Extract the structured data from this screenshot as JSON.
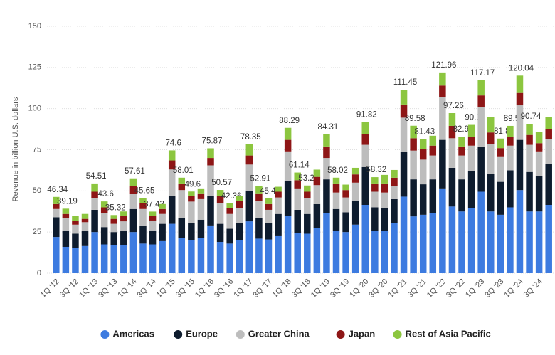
{
  "chart_data": {
    "type": "stacked-bar",
    "ylabel": "Revenue in billion U.S. dollars",
    "categories": [
      "1Q '12",
      null,
      "3Q '12",
      null,
      "1Q '13",
      null,
      "3Q '13",
      null,
      "1Q '14",
      null,
      "3Q '14",
      null,
      "1Q '15",
      null,
      "3Q '15",
      null,
      "1Q '16",
      null,
      "3Q '16",
      null,
      "1Q '17",
      null,
      "3Q '17",
      null,
      "1Q '18",
      null,
      "3Q '18",
      null,
      "1Q '19",
      null,
      "3Q '19",
      null,
      "1Q '20",
      null,
      "3Q '20",
      null,
      "1Q '21",
      null,
      "3Q '21",
      null,
      "1Q '22",
      null,
      "3Q '22",
      null,
      "1Q '23",
      null,
      "3Q '23",
      null,
      "1Q '24",
      null,
      "3Q '24",
      null
    ],
    "series": [
      {
        "name": "Americas",
        "color": "#3d7be0",
        "values": [
          22,
          16,
          15.5,
          16.5,
          25,
          17.5,
          17,
          17,
          25,
          18,
          17.5,
          19.5,
          30,
          21.5,
          20,
          21.5,
          29,
          19,
          18,
          20,
          31.5,
          21,
          20.5,
          22.5,
          35,
          24.5,
          24,
          27.5,
          36.5,
          25.5,
          25,
          29.5,
          41.5,
          25.5,
          25.5,
          30.5,
          46.5,
          34.5,
          35.5,
          36.5,
          51.5,
          40.5,
          37.5,
          39.5,
          49.5,
          37.5,
          35.5,
          40,
          50.5,
          37.5,
          37.5,
          41.5
        ]
      },
      {
        "name": "Europe",
        "color": "#0e1c2e",
        "values": [
          12,
          10,
          8.5,
          9,
          13.5,
          10.5,
          8,
          8.5,
          14,
          11,
          8.5,
          10.5,
          17,
          12,
          10.5,
          11,
          18,
          11,
          9,
          10.5,
          18.5,
          12.5,
          10,
          13.5,
          21,
          14,
          12,
          14.5,
          20.5,
          13.5,
          12,
          14.5,
          23,
          14.5,
          14,
          14.5,
          27,
          22.5,
          18.5,
          20.5,
          29.5,
          23.5,
          19.5,
          22.5,
          27.5,
          23,
          20,
          22.5,
          30.5,
          24,
          21.5,
          25
        ]
      },
      {
        "name": "Greater China",
        "color": "#bdbdbd",
        "values": [
          5,
          7.5,
          5.5,
          5.5,
          7,
          8.5,
          5,
          6,
          9,
          10,
          6,
          6,
          16,
          17,
          13,
          12.5,
          18.5,
          12.5,
          9,
          9,
          16,
          10.5,
          8,
          10,
          18,
          13,
          9.5,
          11.5,
          13,
          10,
          9,
          11,
          13.5,
          9.5,
          9.5,
          8,
          21,
          17.5,
          15,
          14.5,
          26,
          18,
          14.5,
          15.5,
          24,
          18,
          15.5,
          15,
          21,
          16.5,
          15,
          15
        ]
      },
      {
        "name": "Japan",
        "color": "#8e1616",
        "values": [
          3,
          2.5,
          2.5,
          2,
          4,
          3.5,
          3,
          3.5,
          5,
          3.5,
          3,
          3,
          5.5,
          4,
          3.5,
          3.5,
          4.5,
          4.5,
          3.5,
          4.5,
          5.5,
          4.5,
          3.5,
          3.5,
          7,
          5,
          4,
          5,
          7,
          5.5,
          4.5,
          5,
          6.5,
          5,
          5.5,
          5,
          8,
          7.5,
          6.5,
          6,
          7,
          7.5,
          5.5,
          5.5,
          7,
          7,
          5,
          5.5,
          7.5,
          6,
          5,
          6
        ]
      },
      {
        "name": "Rest of Asia Pacific",
        "color": "#8cc63f",
        "values": [
          4.34,
          3.19,
          3,
          3,
          5.01,
          3.6,
          2.32,
          2.5,
          4.61,
          3.15,
          2.43,
          3,
          6.1,
          3.51,
          2.6,
          3,
          5.87,
          3.57,
          2.86,
          2.85,
          6.85,
          4.41,
          3.41,
          3,
          7.29,
          4.64,
          3.77,
          4.4,
          7.31,
          3.52,
          3.3,
          4,
          7.32,
          3.82,
          5.2,
          4.7,
          8.95,
          7.58,
          5.93,
          6,
          7.96,
          7.76,
          5.96,
          7.1,
          9.17,
          9.3,
          5.8,
          6.5,
          10.54,
          6.74,
          6.8,
          7.4
        ]
      }
    ],
    "totals": [
      46.34,
      39.19,
      null,
      null,
      54.51,
      43.6,
      35.32,
      null,
      57.61,
      45.65,
      37.43,
      null,
      74.6,
      58.01,
      49.6,
      null,
      75.87,
      50.57,
      42.36,
      null,
      78.35,
      52.91,
      45.41,
      null,
      88.29,
      61.14,
      53.27,
      null,
      84.31,
      58.02,
      null,
      null,
      91.82,
      58.32,
      null,
      null,
      111.45,
      89.58,
      81.43,
      null,
      121.96,
      97.26,
      82.96,
      90.1,
      117.17,
      null,
      81.8,
      89.5,
      120.04,
      90.74,
      null,
      null
    ],
    "ylim": [
      0,
      150
    ],
    "yticks": [
      0,
      25,
      50,
      75,
      100,
      125,
      150
    ],
    "grid": true,
    "legend": "bottom"
  }
}
